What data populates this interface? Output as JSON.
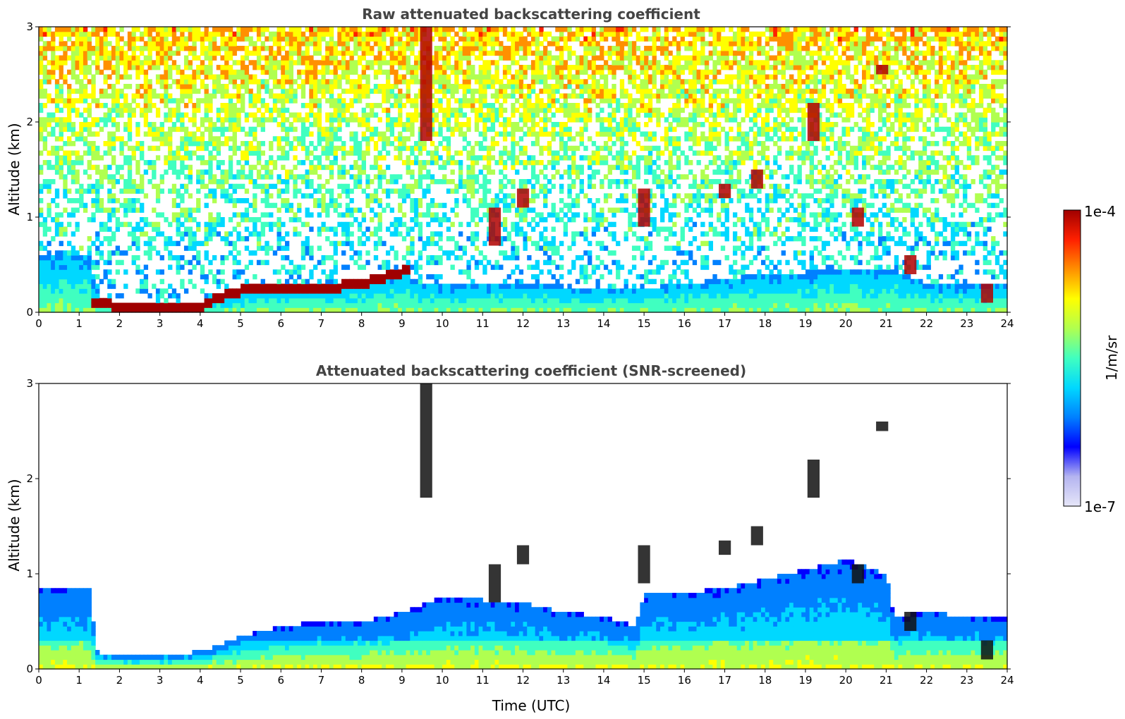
{
  "chart_data": [
    {
      "type": "heatmap",
      "title": "Raw attenuated backscattering coefficient",
      "xlabel": "",
      "ylabel": "Altitude (km)",
      "xlim": [
        0,
        24
      ],
      "ylim": [
        0,
        3
      ],
      "xticks": [
        "0",
        "1",
        "2",
        "3",
        "4",
        "5",
        "6",
        "7",
        "8",
        "9",
        "10",
        "11",
        "12",
        "13",
        "14",
        "15",
        "16",
        "17",
        "18",
        "19",
        "20",
        "21",
        "22",
        "23",
        "24"
      ],
      "yticks": [
        "0",
        "1",
        "2",
        "3"
      ],
      "grid": false,
      "features": {
        "boundary_layer_top_km": [
          [
            0,
            0.6
          ],
          [
            1.3,
            0.6
          ],
          [
            1.4,
            0.1
          ],
          [
            2,
            0.08
          ],
          [
            3,
            0.08
          ],
          [
            4,
            0.12
          ],
          [
            5,
            0.22
          ],
          [
            6,
            0.27
          ],
          [
            7,
            0.27
          ],
          [
            8,
            0.33
          ],
          [
            9,
            0.45
          ],
          [
            9.5,
            0.3
          ],
          [
            10,
            0.3
          ],
          [
            12,
            0.3
          ],
          [
            14,
            0.25
          ],
          [
            14.8,
            0.25
          ],
          [
            16,
            0.3
          ],
          [
            18,
            0.4
          ],
          [
            20,
            0.45
          ],
          [
            21.2,
            0.45
          ],
          [
            22,
            0.3
          ],
          [
            23,
            0.3
          ],
          [
            24,
            0.3
          ]
        ],
        "aerosol_layer_km": [
          [
            1.3,
            0.13
          ],
          [
            2,
            0.06
          ],
          [
            3,
            0.06
          ],
          [
            4,
            0.06
          ],
          [
            4.5,
            0.16
          ],
          [
            5,
            0.22
          ],
          [
            5.5,
            0.27
          ],
          [
            6,
            0.25
          ],
          [
            7,
            0.25
          ],
          [
            8,
            0.3
          ],
          [
            9,
            0.42
          ],
          [
            9.2,
            0.47
          ]
        ],
        "strong_return_events": [
          {
            "time_utc": 9.6,
            "altitude_km": [
              1.8,
              3.0
            ]
          },
          {
            "time_utc": 11.3,
            "altitude_km": [
              0.7,
              1.1
            ]
          },
          {
            "time_utc": 12.0,
            "altitude_km": [
              1.1,
              1.3
            ]
          },
          {
            "time_utc": 15.0,
            "altitude_km": [
              0.9,
              1.3
            ]
          },
          {
            "time_utc": 17.0,
            "altitude_km": [
              1.2,
              1.35
            ]
          },
          {
            "time_utc": 17.8,
            "altitude_km": [
              1.3,
              1.5
            ]
          },
          {
            "time_utc": 19.2,
            "altitude_km": [
              1.8,
              2.2
            ]
          },
          {
            "time_utc": 20.3,
            "altitude_km": [
              0.9,
              1.1
            ]
          },
          {
            "time_utc": 20.9,
            "altitude_km": [
              2.5,
              2.6
            ]
          },
          {
            "time_utc": 21.6,
            "altitude_km": [
              0.4,
              0.6
            ]
          },
          {
            "time_utc": 23.5,
            "altitude_km": [
              0.1,
              0.3
            ]
          }
        ]
      }
    },
    {
      "type": "heatmap",
      "title": "Attenuated backscattering coefficient (SNR-screened)",
      "xlabel": "Time (UTC)",
      "ylabel": "Altitude (km)",
      "xlim": [
        0,
        24
      ],
      "ylim": [
        0,
        3
      ],
      "xticks": [
        "0",
        "1",
        "2",
        "3",
        "4",
        "5",
        "6",
        "7",
        "8",
        "9",
        "10",
        "11",
        "12",
        "13",
        "14",
        "15",
        "16",
        "17",
        "18",
        "19",
        "20",
        "21",
        "22",
        "23",
        "24"
      ],
      "yticks": [
        "0",
        "1",
        "2",
        "3"
      ],
      "grid": false,
      "features": {
        "signal_top_km": [
          [
            0,
            0.85
          ],
          [
            1.3,
            0.85
          ],
          [
            1.4,
            0.18
          ],
          [
            2,
            0.15
          ],
          [
            3,
            0.15
          ],
          [
            4,
            0.18
          ],
          [
            5,
            0.35
          ],
          [
            6,
            0.45
          ],
          [
            7,
            0.5
          ],
          [
            8,
            0.5
          ],
          [
            9,
            0.6
          ],
          [
            10,
            0.75
          ],
          [
            12,
            0.7
          ],
          [
            13,
            0.6
          ],
          [
            14,
            0.55
          ],
          [
            14.8,
            0.45
          ],
          [
            15,
            0.8
          ],
          [
            16,
            0.8
          ],
          [
            17,
            0.85
          ],
          [
            18,
            0.95
          ],
          [
            19,
            1.05
          ],
          [
            20,
            1.15
          ],
          [
            21,
            1.0
          ],
          [
            21.2,
            0.55
          ],
          [
            22,
            0.6
          ],
          [
            23,
            0.55
          ],
          [
            24,
            0.55
          ]
        ]
      }
    }
  ],
  "colorbar": {
    "label": "1/m/sr",
    "max_label": "1e-4",
    "min_label": "1e-7",
    "scale": "log",
    "colormap": [
      "#e6e6f8",
      "#b4b4f0",
      "#0000ff",
      "#0080ff",
      "#00d8ff",
      "#40ffc0",
      "#b0ff50",
      "#ffff00",
      "#ff9000",
      "#ff2000",
      "#a00000"
    ]
  }
}
